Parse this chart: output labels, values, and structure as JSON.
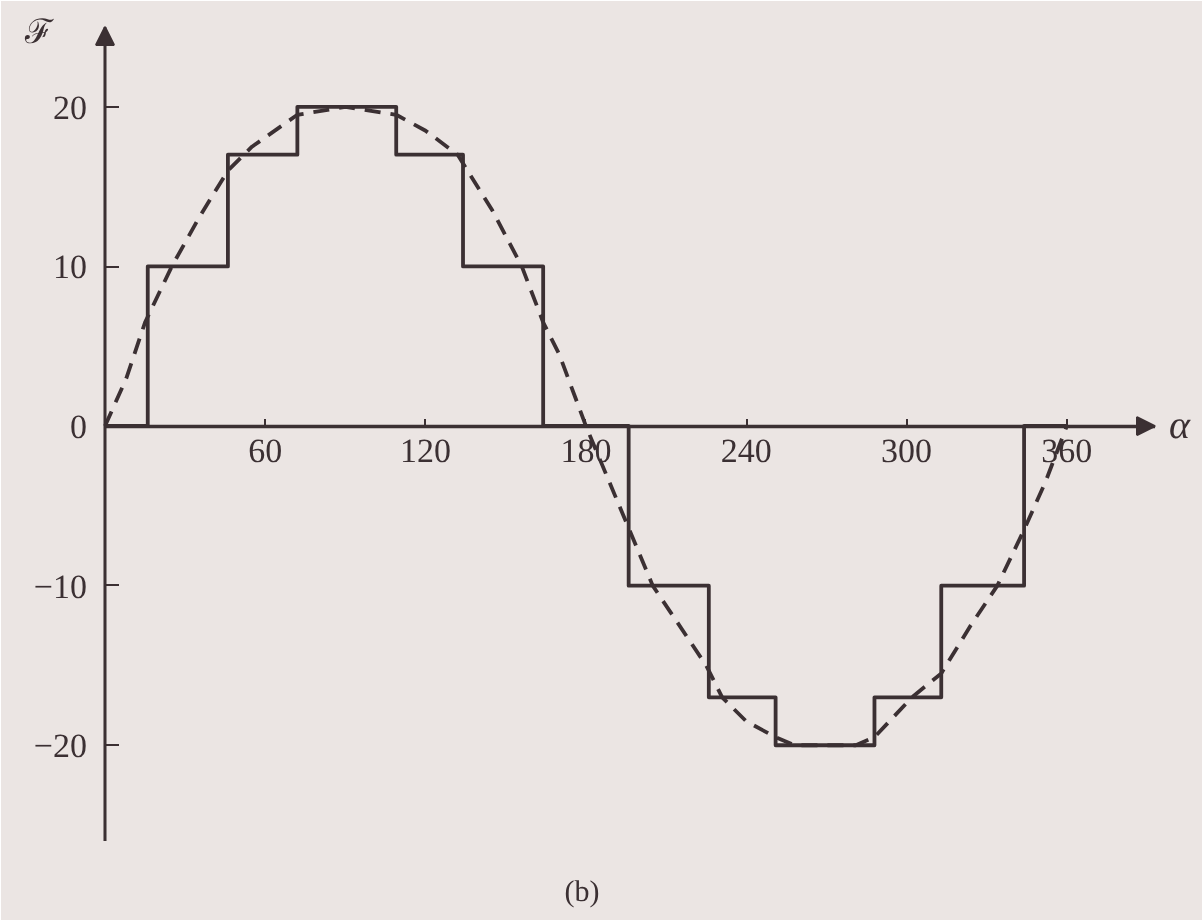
{
  "chart_data": {
    "type": "line",
    "xlabel": "α",
    "ylabel": "ℱ",
    "annotations": [
      "(b)"
    ],
    "xlim": [
      0,
      393
    ],
    "ylim": [
      -26,
      25
    ],
    "xticks": [
      60,
      120,
      180,
      240,
      300,
      360
    ],
    "yticks": [
      -20,
      -10,
      0,
      10,
      20
    ],
    "series": [
      {
        "type": "step",
        "color": "#3b3033",
        "line_style": "solid",
        "x": [
          0,
          16,
          46,
          72,
          109,
          134,
          164,
          196,
          226,
          251,
          288,
          313,
          344,
          360
        ],
        "values": [
          0,
          10,
          17,
          20,
          17,
          10,
          0,
          -10,
          -17,
          -20,
          -17,
          -10,
          0,
          0
        ]
      },
      {
        "color": "#3b3033",
        "line_style": "dashed",
        "x": [
          0,
          8,
          15,
          25,
          35,
          46,
          55,
          72,
          90,
          109,
          120,
          132,
          145,
          156,
          164,
          170,
          180,
          195,
          205,
          225,
          231,
          240,
          251,
          258,
          270,
          281,
          288,
          302,
          313,
          324,
          334,
          344,
          352,
          360
        ],
        "values": [
          0,
          3,
          6.5,
          10,
          13,
          16,
          17.5,
          19.5,
          20,
          19.5,
          18.5,
          17,
          13.5,
          10,
          6.5,
          4.5,
          0,
          -6,
          -10,
          -15,
          -17,
          -18.5,
          -19.5,
          -20,
          -20,
          -20,
          -19.5,
          -17,
          -15.5,
          -12.5,
          -10,
          -6.5,
          -3.5,
          0
        ]
      }
    ]
  }
}
